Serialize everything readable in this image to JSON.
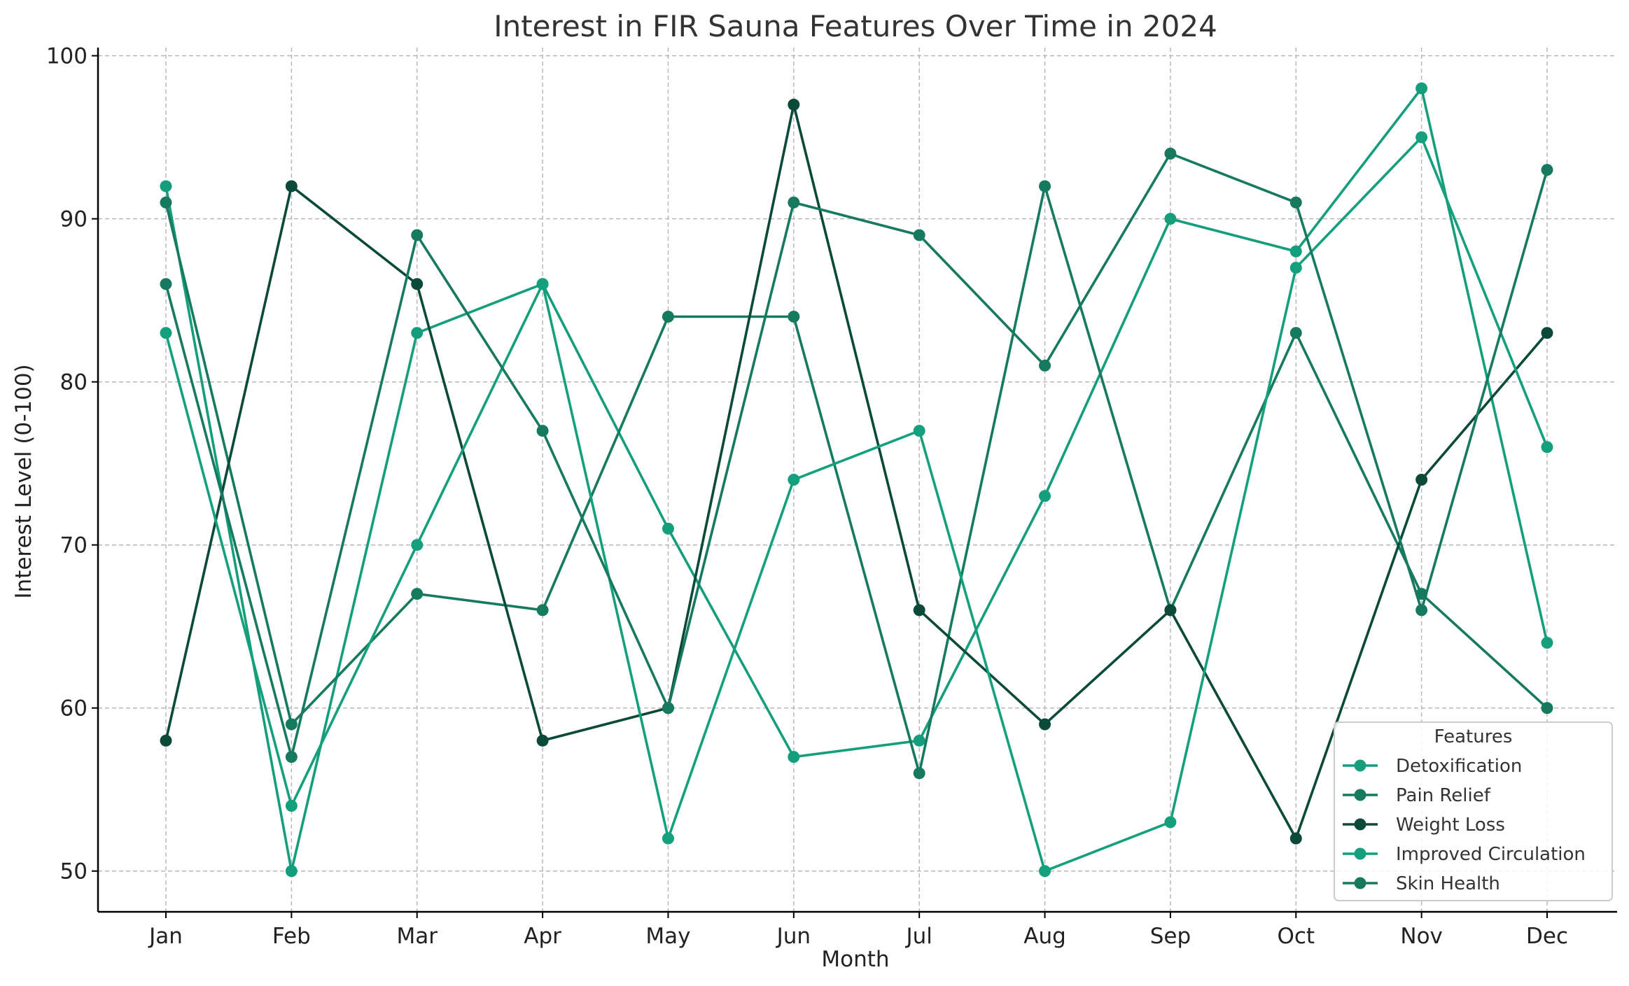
{
  "chart_data": {
    "type": "line",
    "title": "Interest in FIR Sauna Features Over Time in 2024",
    "xlabel": "Month",
    "ylabel": "Interest Level (0-100)",
    "categories": [
      "Jan",
      "Feb",
      "Mar",
      "Apr",
      "May",
      "Jun",
      "Jul",
      "Aug",
      "Sep",
      "Oct",
      "Nov",
      "Dec"
    ],
    "ylim": [
      47.5,
      100.5
    ],
    "yticks": [
      50,
      60,
      70,
      80,
      90,
      100
    ],
    "grid": true,
    "legend": {
      "title": "Features",
      "placement": "lower-right"
    },
    "series": [
      {
        "name": "Detoxification",
        "color": "#149e7c",
        "values": [
          92,
          50,
          83,
          86,
          71,
          57,
          58,
          73,
          90,
          88,
          98,
          64
        ]
      },
      {
        "name": "Pain Relief",
        "color": "#157a5e",
        "values": [
          91,
          59,
          67,
          66,
          84,
          84,
          56,
          92,
          66,
          83,
          67,
          60
        ]
      },
      {
        "name": "Weight Loss",
        "color": "#0b4a38",
        "values": [
          58,
          92,
          86,
          58,
          60,
          97,
          66,
          59,
          66,
          52,
          74,
          83
        ]
      },
      {
        "name": "Improved Circulation",
        "color": "#14a07d",
        "values": [
          83,
          54,
          70,
          86,
          52,
          74,
          77,
          50,
          53,
          87,
          95,
          76
        ]
      },
      {
        "name": "Skin Health",
        "color": "#177a60",
        "values": [
          86,
          57,
          89,
          77,
          60,
          91,
          89,
          81,
          94,
          91,
          66,
          93
        ]
      }
    ]
  }
}
